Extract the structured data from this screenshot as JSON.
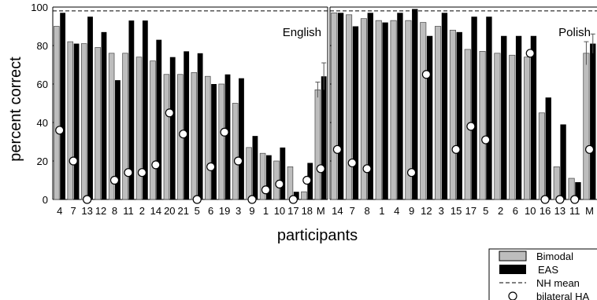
{
  "chart_data": {
    "type": "bar",
    "ylabel": "percent correct",
    "xlabel": "participants",
    "ylim": [
      0,
      100
    ],
    "yticks": [
      0,
      20,
      40,
      60,
      80,
      100
    ],
    "nh_mean": 98,
    "colors": {
      "Bimodal": "#bdbdbd",
      "EAS": "#000000",
      "NH mean": "#000000",
      "bilateral HA": "#ffffff"
    },
    "legend": {
      "position": "bottom-right",
      "entries": [
        {
          "key": "Bimodal",
          "label": "Bimodal",
          "symbol": "gray-bar"
        },
        {
          "key": "EAS",
          "label": "EAS",
          "symbol": "black-bar"
        },
        {
          "key": "NH mean",
          "label": "NH mean",
          "symbol": "dashed-line"
        },
        {
          "key": "bilateral HA",
          "label": "bilateral HA",
          "symbol": "open-circle"
        }
      ]
    },
    "panels": [
      {
        "name": "English",
        "categories": [
          "4",
          "7",
          "13",
          "12",
          "8",
          "11",
          "2",
          "14",
          "20",
          "21",
          "5",
          "6",
          "19",
          "3",
          "9",
          "1",
          "10",
          "17",
          "18",
          "M"
        ],
        "series": [
          {
            "name": "Bimodal",
            "values": [
              90,
              82,
              81,
              79,
              76,
              76,
              74,
              72,
              65,
              65,
              66,
              64,
              60,
              50,
              27,
              24,
              20,
              17,
              4,
              57
            ]
          },
          {
            "name": "EAS",
            "values": [
              97,
              81,
              95,
              87,
              62,
              93,
              93,
              83,
              74,
              77,
              76,
              60,
              65,
              63,
              33,
              23,
              27,
              4,
              19,
              64
            ]
          },
          {
            "name": "bilateral HA",
            "values": [
              36,
              20,
              0,
              null,
              10,
              14,
              14,
              18,
              45,
              34,
              0,
              17,
              35,
              20,
              0,
              5,
              8,
              0,
              10,
              16
            ]
          }
        ],
        "error_bars": {
          "Bimodal": [
            null,
            null,
            null,
            null,
            null,
            null,
            null,
            null,
            null,
            null,
            null,
            null,
            null,
            null,
            null,
            null,
            null,
            null,
            null,
            4
          ],
          "EAS": [
            null,
            null,
            null,
            null,
            null,
            null,
            null,
            null,
            null,
            null,
            null,
            null,
            null,
            null,
            null,
            null,
            null,
            null,
            null,
            7
          ]
        }
      },
      {
        "name": "Polish",
        "categories": [
          "14",
          "7",
          "8",
          "1",
          "4",
          "9",
          "12",
          "3",
          "15",
          "17",
          "5",
          "2",
          "6",
          "10",
          "16",
          "13",
          "11",
          "M"
        ],
        "series": [
          {
            "name": "Bimodal",
            "values": [
              97,
              96,
              94,
              93,
              93,
              93,
              92,
              90,
              88,
              78,
              77,
              76,
              75,
              74,
              45,
              17,
              11,
              76
            ]
          },
          {
            "name": "EAS",
            "values": [
              97,
              90,
              97,
              92,
              97,
              99,
              85,
              97,
              87,
              95,
              95,
              85,
              85,
              85,
              53,
              39,
              9,
              81
            ]
          },
          {
            "name": "bilateral HA",
            "values": [
              26,
              19,
              16,
              null,
              null,
              14,
              65,
              null,
              26,
              38,
              31,
              null,
              null,
              76,
              0,
              0,
              0,
              26
            ]
          }
        ],
        "error_bars": {
          "Bimodal": [
            null,
            null,
            null,
            null,
            null,
            null,
            null,
            null,
            null,
            null,
            null,
            null,
            null,
            null,
            null,
            null,
            null,
            6
          ],
          "EAS": [
            null,
            null,
            null,
            null,
            null,
            null,
            null,
            null,
            null,
            null,
            null,
            null,
            null,
            null,
            null,
            null,
            null,
            5
          ]
        }
      }
    ]
  }
}
